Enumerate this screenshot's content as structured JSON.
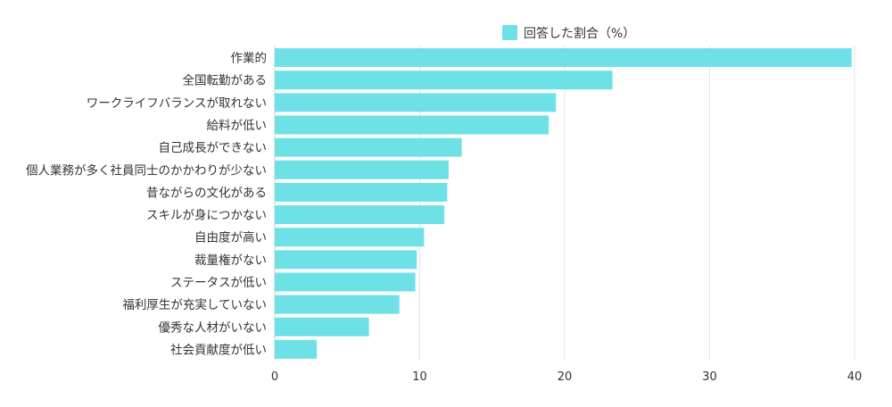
{
  "chart_data": {
    "type": "bar",
    "orientation": "horizontal",
    "legend": {
      "label": "回答した割合（%）",
      "placement": "top-center"
    },
    "series": [
      {
        "name": "回答した割合（%）",
        "color": "#6ee1e6",
        "values": [
          39.8,
          23.3,
          19.4,
          18.9,
          12.9,
          12.0,
          11.9,
          11.7,
          10.3,
          9.8,
          9.7,
          8.6,
          6.5,
          2.9
        ]
      }
    ],
    "categories": [
      "作業的",
      "全国転勤がある",
      "ワークライフバランスが取れない",
      "給料が低い",
      "自己成長ができない",
      "個人業務が多く社員同士のかかわりが少ない",
      "昔ながらの文化がある",
      "スキルが身につかない",
      "自由度が高い",
      "裁量権がない",
      "ステータスが低い",
      "福利厚生が充実していない",
      "優秀な人材がいない",
      "社会貢献度が低い"
    ],
    "xlim": [
      0,
      40
    ],
    "xticks": [
      "0",
      "10",
      "20",
      "30",
      "40"
    ],
    "grid": true,
    "gridColor": "#e3e3e3",
    "textColor": "#333333"
  }
}
